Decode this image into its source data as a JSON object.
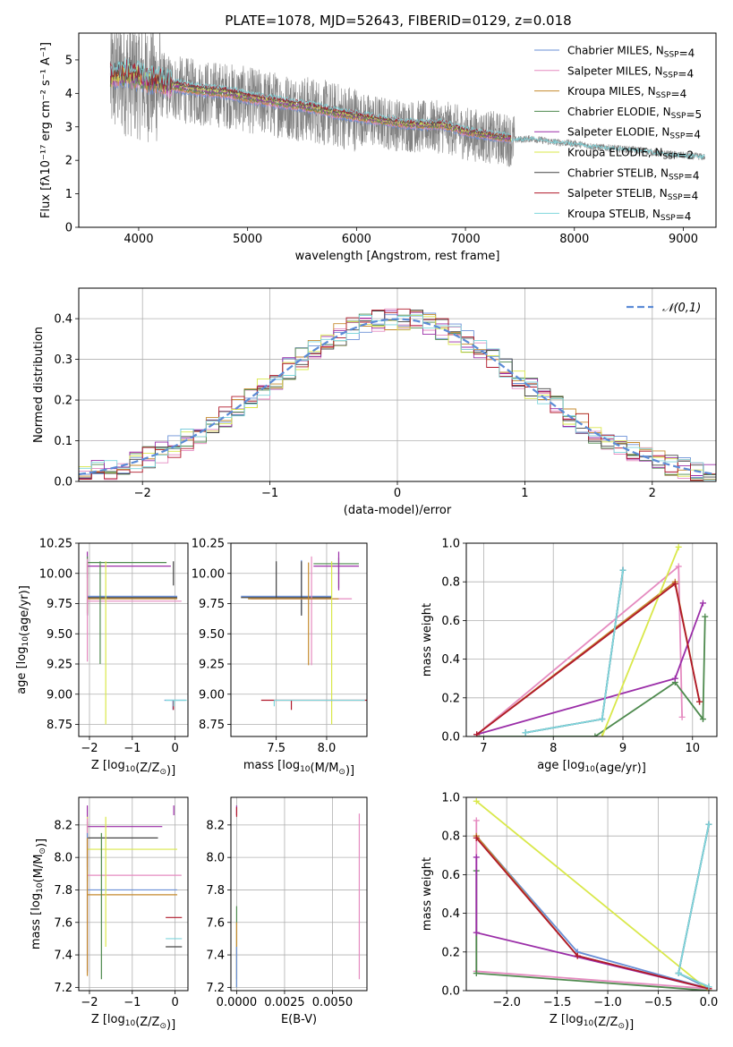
{
  "figure_title": "PLATE=1078, MJD=52643, FIBERID=0129, z=0.018",
  "legend_models": [
    {
      "pre": "Chabrier MILES, N",
      "sub": "SSP",
      "post": "=4",
      "color": "#6a8fd6"
    },
    {
      "pre": "Salpeter MILES, N",
      "sub": "SSP",
      "post": "=4",
      "color": "#e58bc0"
    },
    {
      "pre": "Kroupa MILES, N",
      "sub": "SSP",
      "post": "=4",
      "color": "#c58a2e"
    },
    {
      "pre": "Chabrier ELODIE, N",
      "sub": "SSP",
      "post": "=5",
      "color": "#4e8a4e"
    },
    {
      "pre": "Salpeter ELODIE, N",
      "sub": "SSP",
      "post": "=4",
      "color": "#9b2ea8"
    },
    {
      "pre": "Kroupa ELODIE, N",
      "sub": "SSP",
      "post": "=2",
      "color": "#d9e84a"
    },
    {
      "pre": "Chabrier STELIB, N",
      "sub": "SSP",
      "post": "=4",
      "color": "#444444"
    },
    {
      "pre": "Salpeter STELIB, N",
      "sub": "SSP",
      "post": "=4",
      "color": "#b0182a"
    },
    {
      "pre": "Kroupa STELIB, N",
      "sub": "SSP",
      "post": "=4",
      "color": "#7fd6dc"
    }
  ],
  "chart_data": [
    {
      "id": "spectrum",
      "type": "line",
      "xlabel": "wavelength [Angstrom, rest frame]",
      "ylabel": "Flux [fλ10⁻¹⁷ erg cm⁻² s⁻¹ A⁻¹]",
      "xlim": [
        3450,
        9300
      ],
      "ylim": [
        0,
        5.8
      ],
      "xticks": [
        4000,
        5000,
        6000,
        7000,
        8000,
        9000
      ],
      "yticks": [
        0,
        1,
        2,
        3,
        4,
        5
      ],
      "data_color": "#808080",
      "continuum_anchors": {
        "x": [
          3740,
          3800,
          3900,
          4000,
          4100,
          4200,
          4400,
          4600,
          4800,
          5000,
          5200,
          5400,
          5600,
          5800,
          6000,
          6200,
          6400,
          6600,
          6800,
          7000,
          7200,
          7420,
          7600,
          7800,
          8000,
          8200,
          8400,
          8600,
          8800,
          9000,
          9200
        ],
        "y": [
          4.4,
          4.5,
          4.5,
          4.4,
          4.3,
          4.25,
          4.1,
          4.0,
          3.95,
          3.8,
          3.7,
          3.6,
          3.5,
          3.35,
          3.25,
          3.15,
          3.05,
          3.0,
          3.0,
          2.8,
          2.7,
          2.6,
          2.65,
          2.55,
          2.5,
          2.4,
          2.35,
          2.3,
          2.2,
          2.15,
          2.1
        ]
      },
      "model_x_range": [
        3740,
        7420
      ]
    },
    {
      "id": "residuals",
      "type": "step",
      "xlabel": "(data-model)/error",
      "ylabel": "Normed distribution",
      "xlim": [
        -2.5,
        2.5
      ],
      "ylim": [
        0,
        0.475
      ],
      "xticks": [
        -2,
        -1,
        0,
        1,
        2
      ],
      "yticks": [
        0,
        0.1,
        0.2,
        0.3,
        0.4
      ],
      "legend_label": "𝒩(0,1)",
      "gaussian_color": "#5b8bd6",
      "bin_width": 0.1
    },
    {
      "id": "age-vs-Z",
      "type": "errorbar",
      "xlabel_parts": {
        "pre": "Z [log",
        "sub": "10",
        "mid": "(Z/Z",
        "sub2": "⊙",
        "post": ")]"
      },
      "ylabel_parts": {
        "pre": "age  [log",
        "sub": "10",
        "post": "(age/yr)]"
      },
      "xlim": [
        -2.25,
        0.3
      ],
      "ylim": [
        8.65,
        10.25
      ],
      "xticks": [
        -2,
        -1,
        0
      ],
      "yticks": [
        8.75,
        9.0,
        9.25,
        9.5,
        9.75,
        10.0,
        10.25
      ],
      "points": [
        {
          "c": 4,
          "x": -2.05,
          "xe": [
            0,
            1.95
          ],
          "y": 10.06,
          "ye": [
            0.1,
            0.12
          ]
        },
        {
          "c": 3,
          "x": -2.05,
          "xe": [
            0,
            1.85
          ],
          "y": 10.09,
          "ye": [
            0.1,
            0.05
          ]
        },
        {
          "c": 0,
          "x": -2.05,
          "xe": [
            0,
            2.1
          ],
          "y": 9.81,
          "ye": [
            0.15,
            0.3
          ]
        },
        {
          "c": 6,
          "x": -2.05,
          "xe": [
            0,
            2.1
          ],
          "y": 9.8,
          "ye": [
            0.15,
            0.3
          ]
        },
        {
          "c": 2,
          "x": -2.05,
          "xe": [
            0,
            2.1
          ],
          "y": 9.79,
          "ye": [
            0.12,
            0.3
          ]
        },
        {
          "c": 1,
          "x": -2.05,
          "xe": [
            0,
            2.2
          ],
          "y": 9.77,
          "ye": [
            0.5,
            0.35
          ]
        },
        {
          "c": 3,
          "x": -1.75,
          "xe": [
            0,
            0
          ],
          "y": 9.75,
          "ye": [
            0.5,
            0.35
          ]
        },
        {
          "c": 5,
          "x": -1.62,
          "xe": [
            0,
            0
          ],
          "y": 9.75,
          "ye": [
            1.0,
            0.35
          ]
        },
        {
          "c": 0,
          "x": -0.05,
          "xe": [
            0.2,
            0.3
          ],
          "y": 8.95,
          "ye": [
            0.08,
            0.0
          ]
        },
        {
          "c": 7,
          "x": -0.04,
          "xe": [
            0,
            0
          ],
          "y": 8.95,
          "ye": [
            0.08,
            0.0
          ]
        },
        {
          "c": 8,
          "x": -0.03,
          "xe": [
            0.2,
            0.3
          ],
          "y": 8.95,
          "ye": [
            0.05,
            0.0
          ]
        },
        {
          "c": 6,
          "x": -0.04,
          "xe": [
            0.0,
            0.0
          ],
          "y": 9.9,
          "ye": [
            0.0,
            0.2
          ]
        }
      ]
    },
    {
      "id": "age-vs-mass",
      "type": "errorbar",
      "xlabel_parts": {
        "pre": "mass [log",
        "sub": "10",
        "mid": "(M/M",
        "sub2": "⊙",
        "post": ")]"
      },
      "xlim": [
        7.05,
        8.4
      ],
      "ylim": [
        8.65,
        10.25
      ],
      "xticks": [
        7.5,
        8.0
      ],
      "yticks": [
        8.75,
        9.0,
        9.25,
        9.5,
        9.75,
        10.0,
        10.25
      ],
      "points": [
        {
          "c": 3,
          "x": 8.12,
          "xe": [
            0.25,
            0.2
          ],
          "y": 10.08,
          "ye": [
            0.2,
            0.05
          ]
        },
        {
          "c": 4,
          "x": 8.12,
          "xe": [
            0.25,
            0.2
          ],
          "y": 10.06,
          "ye": [
            0.2,
            0.12
          ]
        },
        {
          "c": 0,
          "x": 7.75,
          "xe": [
            0.6,
            0.3
          ],
          "y": 9.81,
          "ye": [
            0.15,
            0.3
          ]
        },
        {
          "c": 6,
          "x": 7.75,
          "xe": [
            0.6,
            0.3
          ],
          "y": 9.8,
          "ye": [
            0.15,
            0.3
          ]
        },
        {
          "c": 1,
          "x": 7.85,
          "xe": [
            0.6,
            0.4
          ],
          "y": 9.79,
          "ye": [
            0.55,
            0.35
          ]
        },
        {
          "c": 2,
          "x": 7.82,
          "xe": [
            0.6,
            0.3
          ],
          "y": 9.79,
          "ye": [
            0.55,
            0.3
          ]
        },
        {
          "c": 5,
          "x": 8.05,
          "xe": [
            0,
            0
          ],
          "y": 9.75,
          "ye": [
            1.0,
            0.35
          ]
        },
        {
          "c": 7,
          "x": 7.65,
          "xe": [
            0.3,
            1.0
          ],
          "y": 8.95,
          "ye": [
            0.08,
            0.0
          ]
        },
        {
          "c": 8,
          "x": 7.48,
          "xe": [
            0.0,
            0.9
          ],
          "y": 8.95,
          "ye": [
            0.05,
            0.0
          ]
        },
        {
          "c": 6,
          "x": 7.5,
          "xe": [
            0.0,
            0.0
          ],
          "y": 9.8,
          "ye": [
            0.0,
            0.3
          ]
        }
      ]
    },
    {
      "id": "weight-vs-age",
      "type": "line",
      "xlabel_parts": {
        "pre": "age  [log",
        "sub": "10",
        "post": "(age/yr)]"
      },
      "ylabel": "mass weight",
      "xlim": [
        6.75,
        10.35
      ],
      "ylim": [
        0,
        1.0
      ],
      "xticks": [
        7,
        8,
        9,
        10
      ],
      "yticks": [
        0.0,
        0.2,
        0.4,
        0.6,
        0.8,
        1.0
      ],
      "series": [
        {
          "c": 0,
          "x": [
            7.6,
            8.7,
            9.0,
            9.0
          ],
          "y": [
            0.02,
            0.09,
            0.86,
            0.86
          ]
        },
        {
          "c": 1,
          "x": [
            6.9,
            9.8,
            9.85
          ],
          "y": [
            0.01,
            0.88,
            0.1
          ]
        },
        {
          "c": 2,
          "x": [
            6.9,
            9.75,
            10.1
          ],
          "y": [
            0.01,
            0.8,
            0.18
          ]
        },
        {
          "c": 3,
          "x": [
            6.9,
            8.6,
            9.75,
            10.15,
            10.18
          ],
          "y": [
            0.0,
            0.0,
            0.28,
            0.09,
            0.62
          ]
        },
        {
          "c": 4,
          "x": [
            6.9,
            9.75,
            10.15
          ],
          "y": [
            0.01,
            0.3,
            0.69
          ]
        },
        {
          "c": 5,
          "x": [
            8.7,
            9.8
          ],
          "y": [
            0.0,
            0.98
          ]
        },
        {
          "c": 6,
          "x": [
            7.6,
            8.7,
            9.0
          ],
          "y": [
            0.02,
            0.09,
            0.86
          ]
        },
        {
          "c": 7,
          "x": [
            6.9,
            9.75,
            10.1
          ],
          "y": [
            0.01,
            0.79,
            0.18
          ]
        },
        {
          "c": 8,
          "x": [
            7.6,
            8.7,
            9.0
          ],
          "y": [
            0.02,
            0.09,
            0.86
          ]
        }
      ]
    },
    {
      "id": "mass-vs-Z",
      "type": "errorbar",
      "xlabel_parts": {
        "pre": "Z [log",
        "sub": "10",
        "mid": "(Z/Z",
        "sub2": "⊙",
        "post": ")]"
      },
      "ylabel_parts": {
        "pre": "mass [log",
        "sub": "10",
        "mid": "(M/M",
        "sub2": "⊙",
        "post": ")]"
      },
      "xlim": [
        -2.25,
        0.3
      ],
      "ylim": [
        7.18,
        8.37
      ],
      "xticks": [
        -2,
        -1,
        0
      ],
      "yticks": [
        7.2,
        7.4,
        7.6,
        7.8,
        8.0,
        8.2
      ],
      "points": [
        {
          "c": 4,
          "x": -2.05,
          "xe": [
            0,
            1.75
          ],
          "y": 8.19,
          "ye": [
            0.25,
            0.13
          ]
        },
        {
          "c": 6,
          "x": -2.05,
          "xe": [
            0,
            1.65
          ],
          "y": 8.12,
          "ye": [
            0.2,
            0.1
          ]
        },
        {
          "c": 5,
          "x": -2.05,
          "xe": [
            0,
            2.1
          ],
          "y": 8.05,
          "ye": [
            0.2,
            0.2
          ]
        },
        {
          "c": 1,
          "x": -2.05,
          "xe": [
            0,
            2.2
          ],
          "y": 7.89,
          "ye": [
            0.6,
            0.35
          ]
        },
        {
          "c": 0,
          "x": -2.05,
          "xe": [
            0,
            2.1
          ],
          "y": 7.8,
          "ye": [
            0.5,
            0.35
          ]
        },
        {
          "c": 2,
          "x": -2.05,
          "xe": [
            0,
            2.1
          ],
          "y": 7.77,
          "ye": [
            0.5,
            0.35
          ]
        },
        {
          "c": 3,
          "x": -1.72,
          "xe": [
            0,
            0
          ],
          "y": 7.8,
          "ye": [
            0.55,
            0.35
          ]
        },
        {
          "c": 5,
          "x": -1.62,
          "xe": [
            0,
            0
          ],
          "y": 7.8,
          "ye": [
            0.35,
            0.45
          ]
        },
        {
          "c": 7,
          "x": -0.04,
          "xe": [
            0.18,
            0.2
          ],
          "y": 7.63,
          "ye": [
            0,
            0
          ]
        },
        {
          "c": 8,
          "x": -0.04,
          "xe": [
            0.18,
            0.2
          ],
          "y": 7.5,
          "ye": [
            0,
            0
          ]
        },
        {
          "c": 6,
          "x": -0.04,
          "xe": [
            0.18,
            0.2
          ],
          "y": 7.45,
          "ye": [
            0,
            0
          ]
        },
        {
          "c": 4,
          "x": -0.03,
          "xe": [
            0,
            0
          ],
          "y": 8.29,
          "ye": [
            0.03,
            0.03
          ]
        }
      ]
    },
    {
      "id": "mass-vs-EBV",
      "type": "errorbar",
      "xlabel": "E(B-V)",
      "xlim": [
        -0.0003,
        0.0068
      ],
      "ylim": [
        7.18,
        8.37
      ],
      "xticks": [
        0.0,
        0.0025,
        0.005
      ],
      "xticklabels": [
        "0.0000",
        "0.0025",
        "0.0050"
      ],
      "yticks": [
        7.2,
        7.4,
        7.6,
        7.8,
        8.0,
        8.2
      ],
      "points": [
        {
          "c": 4,
          "x": 0.0,
          "xe": [
            0,
            0
          ],
          "y": 8.29,
          "ye": [
            0.03,
            0.03
          ]
        },
        {
          "c": 7,
          "x": 0.0,
          "xe": [
            0,
            0
          ],
          "y": 8.28,
          "ye": [
            0.03,
            0.03
          ]
        },
        {
          "c": 3,
          "x": 0.0,
          "xe": [
            0,
            0
          ],
          "y": 7.5,
          "ye": [
            0.3,
            0.2
          ]
        },
        {
          "c": 2,
          "x": 0.0,
          "xe": [
            0,
            0
          ],
          "y": 7.4,
          "ye": [
            0.15,
            0.2
          ]
        },
        {
          "c": 0,
          "x": 0.0,
          "xe": [
            0,
            0
          ],
          "y": 7.3,
          "ye": [
            0.1,
            0.15
          ]
        },
        {
          "c": 1,
          "x": 0.0064,
          "xe": [
            0,
            0
          ],
          "y": 7.75,
          "ye": [
            0.5,
            0.52
          ]
        }
      ]
    },
    {
      "id": "weight-vs-Z",
      "type": "line",
      "xlabel_parts": {
        "pre": "Z [log",
        "sub": "10",
        "mid": "(Z/Z",
        "sub2": "⊙",
        "post": ")]"
      },
      "ylabel": "mass weight",
      "xlim": [
        -2.4,
        0.08
      ],
      "ylim": [
        0,
        1.0
      ],
      "xticks": [
        -2.0,
        -1.5,
        -1.0,
        -0.5,
        0.0
      ],
      "yticks": [
        0.0,
        0.2,
        0.4,
        0.6,
        0.8,
        1.0
      ],
      "series": [
        {
          "c": 0,
          "x": [
            -2.3,
            -1.3,
            0.0,
            -0.3,
            0.0
          ],
          "y": [
            0.8,
            0.2,
            0.01,
            0.09,
            0.86
          ]
        },
        {
          "c": 1,
          "x": [
            -2.3,
            -2.3,
            0.0
          ],
          "y": [
            0.88,
            0.1,
            0.01
          ]
        },
        {
          "c": 2,
          "x": [
            -2.3,
            -1.3,
            0.0
          ],
          "y": [
            0.8,
            0.18,
            0.01
          ]
        },
        {
          "c": 3,
          "x": [
            -2.3,
            -2.3,
            0.0,
            0.0
          ],
          "y": [
            0.62,
            0.09,
            0.0,
            0.0
          ]
        },
        {
          "c": 4,
          "x": [
            -2.3,
            -2.3,
            0.0
          ],
          "y": [
            0.69,
            0.3,
            0.01
          ]
        },
        {
          "c": 5,
          "x": [
            -2.3,
            0.0
          ],
          "y": [
            0.98,
            0.0
          ]
        },
        {
          "c": 6,
          "x": [
            0.0,
            -0.3,
            0.0
          ],
          "y": [
            0.02,
            0.09,
            0.86
          ]
        },
        {
          "c": 7,
          "x": [
            -2.3,
            -1.3,
            0.0
          ],
          "y": [
            0.79,
            0.18,
            0.01
          ]
        },
        {
          "c": 8,
          "x": [
            0.0,
            -0.3,
            0.0
          ],
          "y": [
            0.02,
            0.09,
            0.86
          ]
        }
      ]
    }
  ]
}
